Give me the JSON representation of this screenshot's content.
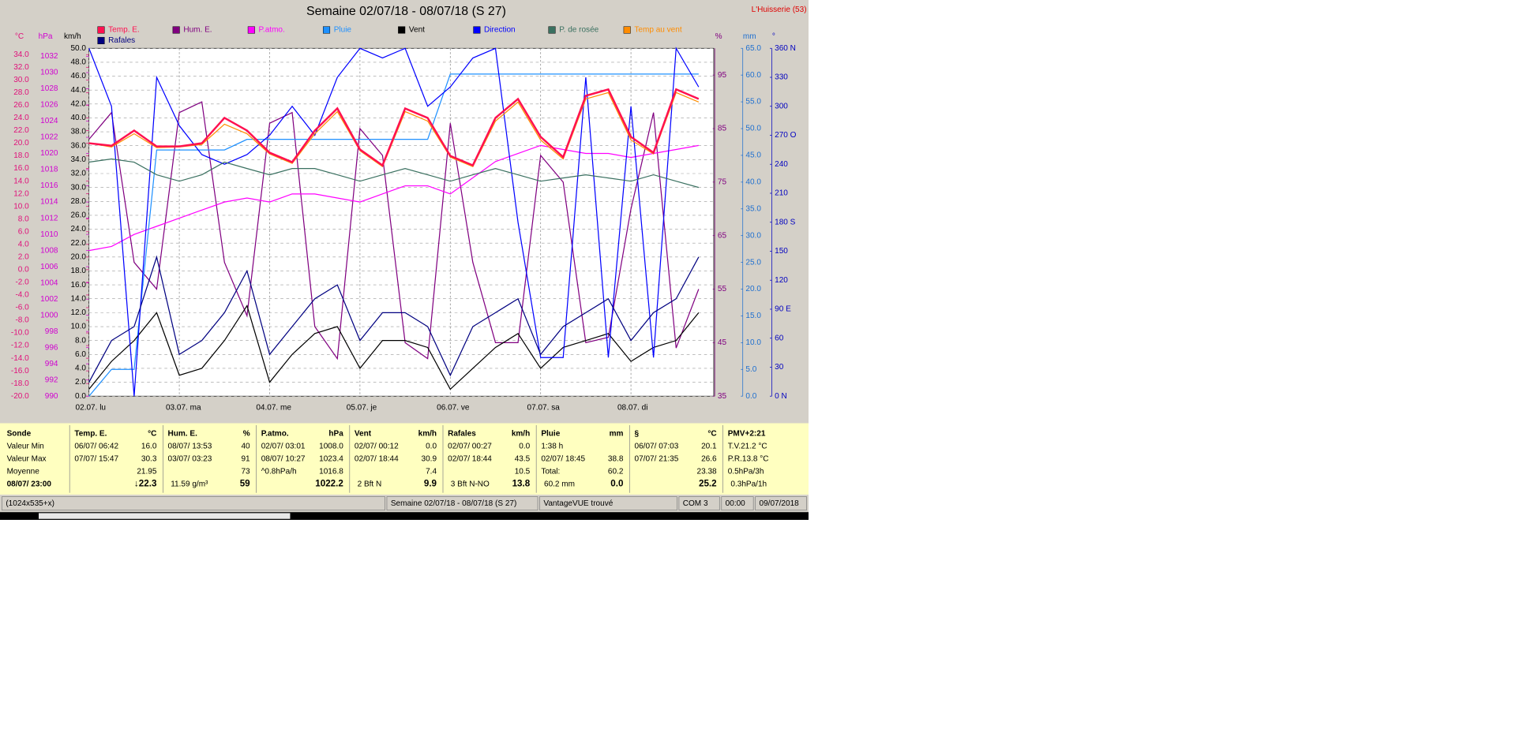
{
  "chart_data": {
    "type": "line",
    "title": "Semaine 02/07/18 - 08/07/18 (S 27)",
    "station": "L'Huisserie (53)",
    "x": [
      0,
      6,
      12,
      18,
      24,
      30,
      36,
      42,
      48,
      54,
      60,
      66,
      72,
      78,
      84,
      90,
      96,
      102,
      108,
      114,
      120,
      126,
      132,
      138,
      144,
      150,
      156,
      162
    ],
    "xlim": [
      0,
      166
    ],
    "xticks": [
      {
        "value": 0,
        "label": "02.07.  lu"
      },
      {
        "value": 24,
        "label": "03.07.  ma"
      },
      {
        "value": 48,
        "label": "04.07.  me"
      },
      {
        "value": 72,
        "label": "05.07.  je"
      },
      {
        "value": 96,
        "label": "06.07.  ve"
      },
      {
        "value": 120,
        "label": "07.07.  sa"
      },
      {
        "value": 144,
        "label": "08.07.  di"
      }
    ],
    "grid": true,
    "axes": [
      {
        "unit": "°C",
        "color": "#e0107a",
        "ylim": [
          -20,
          35
        ],
        "yticks": [
          {
            "value": -20,
            "label": "-20.0"
          },
          {
            "value": -18,
            "label": "-18.0"
          },
          {
            "value": -16,
            "label": "-16.0"
          },
          {
            "value": -14,
            "label": "-14.0"
          },
          {
            "value": -12,
            "label": "-12.0"
          },
          {
            "value": -10,
            "label": "-10.0"
          },
          {
            "value": -8,
            "label": "-8.0"
          },
          {
            "value": -6,
            "label": "-6.0"
          },
          {
            "value": -4,
            "label": "-4.0"
          },
          {
            "value": -2,
            "label": "-2.0"
          },
          {
            "value": 0,
            "label": "0.0"
          },
          {
            "value": 2,
            "label": "2.0"
          },
          {
            "value": 4,
            "label": "4.0"
          },
          {
            "value": 6,
            "label": "6.0"
          },
          {
            "value": 8,
            "label": "8.0"
          },
          {
            "value": 10,
            "label": "10.0"
          },
          {
            "value": 12,
            "label": "12.0"
          },
          {
            "value": 14,
            "label": "14.0"
          },
          {
            "value": 16,
            "label": "16.0"
          },
          {
            "value": 18,
            "label": "18.0"
          },
          {
            "value": 20,
            "label": "20.0"
          },
          {
            "value": 22,
            "label": "22.0"
          },
          {
            "value": 24,
            "label": "24.0"
          },
          {
            "value": 26,
            "label": "26.0"
          },
          {
            "value": 28,
            "label": "28.0"
          },
          {
            "value": 30,
            "label": "30.0"
          },
          {
            "value": 32,
            "label": "32.0"
          },
          {
            "value": 34,
            "label": "34.0"
          }
        ]
      },
      {
        "unit": "hPa",
        "color": "#d000d0",
        "ylim": [
          990,
          1033
        ],
        "yticks": [
          990,
          992,
          994,
          996,
          998,
          1000,
          1002,
          1004,
          1006,
          1008,
          1010,
          1012,
          1014,
          1016,
          1018,
          1020,
          1022,
          1024,
          1026,
          1028,
          1030,
          1032
        ]
      },
      {
        "unit": "km/h",
        "color": "#000000",
        "grid": true,
        "ylim": [
          0,
          50
        ],
        "yticks": [
          {
            "value": 0,
            "label": "0.0"
          },
          {
            "value": 2,
            "label": "2.0"
          },
          {
            "value": 4,
            "label": "4.0"
          },
          {
            "value": 6,
            "label": "6.0"
          },
          {
            "value": 8,
            "label": "8.0"
          },
          {
            "value": 10,
            "label": "10.0"
          },
          {
            "value": 12,
            "label": "12.0"
          },
          {
            "value": 14,
            "label": "14.0"
          },
          {
            "value": 16,
            "label": "16.0"
          },
          {
            "value": 18,
            "label": "18.0"
          },
          {
            "value": 20,
            "label": "20.0"
          },
          {
            "value": 22,
            "label": "22.0"
          },
          {
            "value": 24,
            "label": "24.0"
          },
          {
            "value": 26,
            "label": "26.0"
          },
          {
            "value": 28,
            "label": "28.0"
          },
          {
            "value": 30,
            "label": "30.0"
          },
          {
            "value": 32,
            "label": "32.0"
          },
          {
            "value": 34,
            "label": "34.0"
          },
          {
            "value": 36,
            "label": "36.0"
          },
          {
            "value": 38,
            "label": "38.0"
          },
          {
            "value": 40,
            "label": "40.0"
          },
          {
            "value": 42,
            "label": "42.0"
          },
          {
            "value": 44,
            "label": "44.0"
          },
          {
            "value": 46,
            "label": "46.0"
          },
          {
            "value": 48,
            "label": "48.0"
          },
          {
            "value": 50,
            "label": "50.0"
          }
        ]
      },
      {
        "unit": "%",
        "color": "#800080",
        "ylim": [
          35,
          100
        ],
        "yticks": [
          35,
          45,
          55,
          65,
          75,
          85,
          95
        ]
      },
      {
        "unit": "mm",
        "color": "#1e6fd0",
        "ylim": [
          0,
          65
        ],
        "yticks": [
          {
            "value": 0,
            "label": "0.0"
          },
          {
            "value": 5,
            "label": "5.0"
          },
          {
            "value": 10,
            "label": "10.0"
          },
          {
            "value": 15,
            "label": "15.0"
          },
          {
            "value": 20,
            "label": "20.0"
          },
          {
            "value": 25,
            "label": "25.0"
          },
          {
            "value": 30,
            "label": "30.0"
          },
          {
            "value": 35,
            "label": "35.0"
          },
          {
            "value": 40,
            "label": "40.0"
          },
          {
            "value": 45,
            "label": "45.0"
          },
          {
            "value": 50,
            "label": "50.0"
          },
          {
            "value": 55,
            "label": "55.0"
          },
          {
            "value": 60,
            "label": "60.0"
          },
          {
            "value": 65,
            "label": "65.0"
          }
        ]
      },
      {
        "unit": "°",
        "color": "#0000c0",
        "ylim": [
          0,
          360
        ],
        "yticks": [
          {
            "value": 0,
            "label": "0   N"
          },
          30,
          60,
          {
            "value": 90,
            "label": "90  E"
          },
          120,
          150,
          {
            "value": 180,
            "label": "180 S"
          },
          210,
          240,
          {
            "value": 270,
            "label": "270 O"
          },
          300,
          330,
          {
            "value": 360,
            "label": "360 N"
          }
        ]
      }
    ],
    "series": [
      {
        "name": "Temp. E.",
        "color": "#ff1050",
        "width": 2,
        "axis": 0,
        "values": [
          20,
          19.6,
          22,
          19.5,
          19.5,
          20,
          24,
          22,
          18.5,
          17,
          22,
          25.5,
          19,
          16.5,
          25.5,
          24,
          18,
          16.5,
          24,
          27,
          21,
          17.8,
          27.5,
          28.5,
          21,
          18.5,
          28.5,
          27
        ]
      },
      {
        "name": "Hum. E.",
        "color": "#800080",
        "axis": 3,
        "values": [
          83,
          88,
          60,
          55,
          88,
          90,
          60,
          50,
          86,
          88,
          48,
          42,
          85,
          80,
          45,
          42,
          86,
          60,
          45,
          45,
          80,
          75,
          45,
          46,
          70,
          88,
          44,
          55
        ]
      },
      {
        "name": "P.atmo.",
        "color": "#ff00ff",
        "axis": 1,
        "values": [
          1008,
          1008.5,
          1010,
          1011,
          1012,
          1013,
          1014,
          1014.5,
          1014,
          1015,
          1015,
          1014.5,
          1014,
          1015,
          1016,
          1016,
          1015,
          1017,
          1019,
          1020,
          1021,
          1020.5,
          1020,
          1020,
          1019.5,
          1020,
          1020.5,
          1021
        ]
      },
      {
        "name": "Pluie",
        "color": "#1e90ff",
        "axis": 4,
        "values": [
          0,
          5,
          5,
          46,
          46,
          46,
          46,
          48,
          48,
          48,
          48,
          48,
          48,
          48,
          48,
          48,
          60.2,
          60.2,
          60.2,
          60.2,
          60.2,
          60.2,
          60.2,
          60.2,
          60.2,
          60.2,
          60.2,
          60.2
        ]
      },
      {
        "name": "Vent",
        "color": "#000000",
        "axis": 2,
        "values": [
          1,
          5,
          8,
          12,
          3,
          4,
          8,
          13,
          2,
          6,
          9,
          10,
          4,
          8,
          8,
          7,
          1,
          4,
          7,
          9,
          4,
          7,
          8,
          9,
          5,
          7,
          8,
          12
        ]
      },
      {
        "name": "Direction",
        "color": "#0000ff",
        "axis": 5,
        "values": [
          360,
          300,
          0,
          330,
          280,
          250,
          240,
          250,
          270,
          300,
          270,
          330,
          360,
          350,
          360,
          300,
          320,
          350,
          360,
          180,
          40,
          40,
          330,
          40,
          300,
          40,
          360,
          320
        ]
      },
      {
        "name": "P. de rosée",
        "color": "#3a7060",
        "axis": 0,
        "values": [
          17,
          17.5,
          17,
          15,
          14,
          15,
          17,
          16,
          15,
          16,
          16,
          15,
          14,
          15,
          16,
          15,
          14,
          15,
          16,
          15,
          14,
          14.5,
          15,
          14.5,
          14,
          15,
          14,
          13
        ]
      },
      {
        "name": "Temp au vent",
        "color": "#ff8c00",
        "axis": 0,
        "values": [
          20,
          19.4,
          21.5,
          19.3,
          19.4,
          19.8,
          23,
          21.5,
          18.3,
          16.8,
          21.5,
          25,
          18.8,
          16.3,
          25,
          23.5,
          17.8,
          16.3,
          23.5,
          26.5,
          20.5,
          17.5,
          27,
          28,
          20.5,
          18.3,
          28,
          26.5
        ]
      },
      {
        "name": "Rafales",
        "color": "#000080",
        "axis": 2,
        "values": [
          2,
          8,
          10,
          20,
          6,
          8,
          12,
          18,
          6,
          10,
          14,
          16,
          8,
          12,
          12,
          10,
          3,
          10,
          12,
          14,
          6,
          10,
          12,
          14,
          8,
          12,
          14,
          20
        ]
      }
    ]
  },
  "table": {
    "row_labels": [
      "Sonde",
      "Valeur Min",
      "Valeur Max",
      "Moyenne",
      "08/07/ 23:00"
    ],
    "columns": [
      {
        "name": "Temp. E.",
        "unit": "°C",
        "cells": [
          {
            "left": "06/07/  06:42",
            "right": "16.0"
          },
          {
            "left": "07/07/  15:47",
            "right": "30.3"
          },
          {
            "right": "21.95"
          },
          {
            "right": "↓22.3"
          }
        ]
      },
      {
        "name": "Hum. E.",
        "unit": "%",
        "cells": [
          {
            "left": "08/07/  13:53",
            "right": "40"
          },
          {
            "left": "03/07/  03:23",
            "right": "91"
          },
          {
            "right": "73"
          },
          {
            "left": "11.59 g/m³",
            "right": "59"
          }
        ]
      },
      {
        "name": "P.atmo.",
        "unit": "hPa",
        "cells": [
          {
            "left": "02/07/  03:01",
            "right": "1008.0"
          },
          {
            "left": "08/07/  10:27",
            "right": "1023.4"
          },
          {
            "left": "^0.8hPa/h",
            "right": "1016.8"
          },
          {
            "right": "1022.2"
          }
        ]
      },
      {
        "name": "Vent",
        "unit": "km/h",
        "cells": [
          {
            "left": "02/07/  00:12",
            "right": "0.0"
          },
          {
            "left": "02/07/  18:44",
            "right": "30.9"
          },
          {
            "right": "7.4"
          },
          {
            "left": "2 Bft N",
            "right": "9.9"
          }
        ]
      },
      {
        "name": "Rafales",
        "unit": "km/h",
        "cells": [
          {
            "left": "02/07/  00:27",
            "right": "0.0"
          },
          {
            "left": "02/07/  18:44",
            "right": "43.5"
          },
          {
            "right": "10.5"
          },
          {
            "left": "3 Bft N-NO",
            "right": "13.8"
          }
        ]
      },
      {
        "name": "Pluie",
        "unit": "mm",
        "cells": [
          {
            "left": "1:38 h"
          },
          {
            "left": "02/07/  18:45",
            "right": "38.8"
          },
          {
            "left": "Total:",
            "right": "60.2"
          },
          {
            "left": "60.2 mm",
            "right": "0.0"
          }
        ]
      },
      {
        "name": "§",
        "unit": "°C",
        "cells": [
          {
            "left": "06/07/  07:03",
            "right": "20.1"
          },
          {
            "left": "07/07/  21:35",
            "right": "26.6"
          },
          {
            "right": "23.38"
          },
          {
            "right": "25.2"
          }
        ]
      },
      {
        "name": "PMV+2:21",
        "cells": [
          {
            "left": "T.V.21.2 °C"
          },
          {
            "left": "P.R.13.8 °C"
          },
          {
            "left": "0.5hPa/3h"
          },
          {
            "left": "0.3hPa/1h"
          }
        ]
      }
    ]
  },
  "status_bar": [
    "(1024x535+x)",
    "Semaine 02/07/18 - 08/07/18 (S 27)",
    "VantageVUE trouvé",
    "COM 3",
    "00:00",
    "09/07/2018"
  ]
}
